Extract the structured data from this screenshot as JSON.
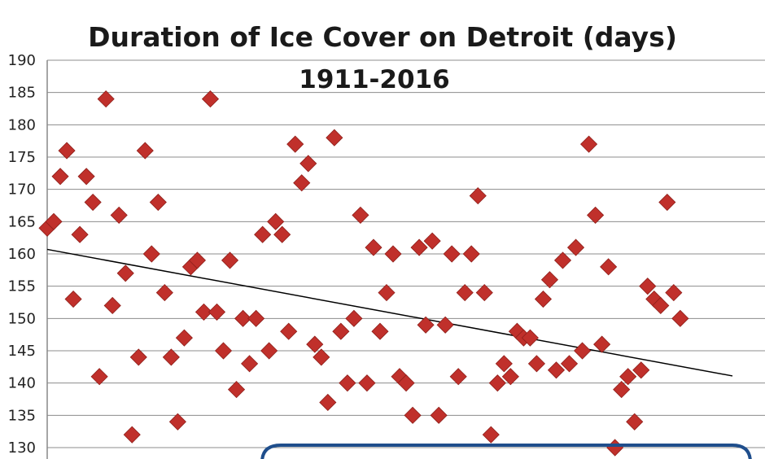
{
  "chart_data": {
    "type": "scatter",
    "title": "Duration of Ice Cover on Detroit (days)",
    "subtitle": "1911-2016",
    "xlabel": "",
    "ylabel": "",
    "xlim": [
      1911,
      2016
    ],
    "ylim": [
      130,
      190
    ],
    "yticks": [
      130,
      135,
      140,
      145,
      150,
      155,
      160,
      165,
      170,
      175,
      180,
      185,
      190
    ],
    "grid": true,
    "marker_color": "#c0302b",
    "trendline": {
      "x": [
        1911,
        2016
      ],
      "y": [
        160.7,
        141.1
      ],
      "color": "#000000"
    },
    "series": [
      {
        "x": [
          1911,
          1912,
          1913,
          1914,
          1915,
          1916,
          1917,
          1918,
          1919,
          1920,
          1921,
          1922,
          1923,
          1924,
          1925,
          1926,
          1927,
          1928,
          1929,
          1930,
          1931,
          1932,
          1933,
          1934,
          1935,
          1936,
          1937,
          1938,
          1939,
          1940,
          1941,
          1942,
          1943,
          1944,
          1945,
          1946,
          1947,
          1948,
          1949,
          1950,
          1951,
          1952,
          1953,
          1954,
          1955,
          1956,
          1957,
          1958,
          1959,
          1960,
          1961,
          1962,
          1963,
          1964,
          1965,
          1966,
          1967,
          1968,
          1969,
          1970,
          1971,
          1972,
          1973,
          1974,
          1975,
          1976,
          1977,
          1978,
          1979,
          1980,
          1981,
          1982,
          1983,
          1984,
          1985,
          1986,
          1987,
          1988,
          1989,
          1990,
          1991,
          1992,
          1993,
          1994,
          1995,
          1996,
          1997,
          1998,
          1999,
          2000,
          2001,
          2002,
          2003,
          2004,
          2005,
          2006,
          2007,
          2008,
          2009,
          2010,
          2011,
          2012,
          2013,
          2014,
          2015,
          2016
        ],
        "y": [
          164,
          165,
          172,
          176,
          153,
          163,
          172,
          168,
          141,
          184,
          152,
          166,
          157,
          132,
          144,
          176,
          160,
          168,
          154,
          144,
          134,
          147,
          158,
          159,
          151,
          184,
          151,
          145,
          159,
          139,
          150,
          143,
          150,
          163,
          145,
          165,
          163,
          148,
          177,
          171,
          174,
          146,
          144,
          137,
          178,
          148,
          140,
          150,
          166,
          140,
          161,
          148,
          154,
          160,
          141,
          140,
          135,
          161,
          149,
          162,
          135,
          149,
          160,
          141,
          154,
          160,
          169,
          154,
          132,
          140,
          143,
          141,
          148,
          147,
          147,
          143,
          153,
          156,
          142,
          159,
          143,
          161,
          145,
          177,
          166,
          146,
          158,
          130,
          139,
          141,
          134,
          142,
          155,
          153,
          152,
          168,
          154,
          150,
          null,
          null,
          null,
          null,
          null,
          null,
          null,
          null
        ]
      }
    ]
  }
}
